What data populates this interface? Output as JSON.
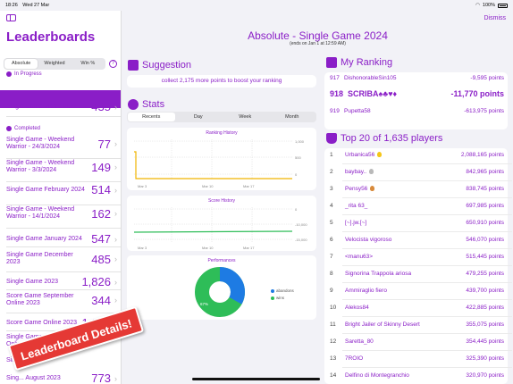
{
  "status": {
    "time": "18:26",
    "date": "Wed 27 Mar",
    "battery": "100%"
  },
  "sidebar": {
    "title": "Leaderboards",
    "segments": [
      "Absolute",
      "Weighted",
      "Win %"
    ],
    "in_progress_label": "In Progress",
    "completed_label": "Completed",
    "items": [
      {
        "label": "Single Game March  2024",
        "value": "435"
      },
      {
        "label": "Single Game - Weekend Warrior - 24/3/2024",
        "value": "77"
      },
      {
        "label": "Single Game - Weekend Warrior - 3/3/2024",
        "value": "149"
      },
      {
        "label": "Single Game February  2024",
        "value": "514"
      },
      {
        "label": "Single Game - Weekend Warrior - 14/1/2024",
        "value": "162"
      },
      {
        "label": "Single Game January  2024",
        "value": "547"
      },
      {
        "label": "Single Game December  2023",
        "value": "485"
      },
      {
        "label": "Single Game 2023",
        "value": "1,826"
      },
      {
        "label": "Score Game September Online 2023",
        "value": "344"
      },
      {
        "label": "Score Game Online 2023",
        "value": "1,085"
      },
      {
        "label": "Single Game September Online 2023",
        "value": ""
      },
      {
        "label": "Sin...",
        "value": ""
      },
      {
        "label": "Sing... August  2023",
        "value": "773"
      }
    ]
  },
  "main": {
    "dismiss": "Dismiss",
    "title": "Absolute - Single Game 2024",
    "subtitle": "(ends on Jan 1 at 12:59 AM)",
    "suggestion_title": "Suggestion",
    "suggestion_text": "collect 2,175 more points to boost your ranking",
    "stats_title": "Stats",
    "stats_tabs": [
      "Recents",
      "Day",
      "Week",
      "Month"
    ],
    "ranking_history_title": "Ranking History",
    "score_history_title": "Score History",
    "performances_title": "Performances",
    "x_ticks": [
      "Mar 3",
      "Mar 10",
      "Mar 17"
    ],
    "ranking_y_ticks": [
      "1,000",
      "500",
      "0"
    ],
    "score_y_ticks": [
      "0",
      "-10,000",
      "-15,000"
    ],
    "legend": [
      "abandons",
      "wins"
    ],
    "perf_values": {
      "abandons": "33%",
      "wins": "67%"
    },
    "ranking_title": "My Ranking",
    "ranking_rows": [
      {
        "pos": "917",
        "name": "DishonorableSin105",
        "points": "-9,595 points"
      },
      {
        "pos": "918",
        "name": "SCRIBA♠♣♥♦",
        "points": "-11,770 points"
      },
      {
        "pos": "919",
        "name": "Pupetta58",
        "points": "-613,975 points"
      }
    ],
    "top_title": "Top 20 of 1,635 players",
    "top_rows": [
      {
        "pos": "1",
        "name": "Urbanica56",
        "points": "2,088,165 points"
      },
      {
        "pos": "2",
        "name": "baybay..",
        "points": "842,965 points"
      },
      {
        "pos": "3",
        "name": "Pensy56",
        "points": "838,745 points"
      },
      {
        "pos": "4",
        "name": "_rita 63_",
        "points": "697,985 points"
      },
      {
        "pos": "5",
        "name": "[~].jw.[~]",
        "points": "650,910 points"
      },
      {
        "pos": "6",
        "name": "Velocista vigoroso",
        "points": "546,070 points"
      },
      {
        "pos": "7",
        "name": "<manu63>",
        "points": "515,445 points"
      },
      {
        "pos": "8",
        "name": "Signorina Trappola ariosa",
        "points": "479,255 points"
      },
      {
        "pos": "9",
        "name": "Ammiraglio fiero",
        "points": "439,700 points"
      },
      {
        "pos": "10",
        "name": "Alekos84",
        "points": "422,885 points"
      },
      {
        "pos": "11",
        "name": "Bright Jailer of Skinny Desert",
        "points": "355,075 points"
      },
      {
        "pos": "12",
        "name": "Saretta_80",
        "points": "354,445 points"
      },
      {
        "pos": "13",
        "name": "7ROIO",
        "points": "325,390 points"
      },
      {
        "pos": "14",
        "name": "Delfino di Montegranchio",
        "points": "320,970 points"
      }
    ]
  },
  "banner": "Leaderboard Details!",
  "colors": {
    "accent": "#8a1ec7",
    "banner": "#e53935",
    "pie_wins": "#2ebd58",
    "pie_abandons": "#1e7be3",
    "ranking_line": "#f0b400"
  }
}
